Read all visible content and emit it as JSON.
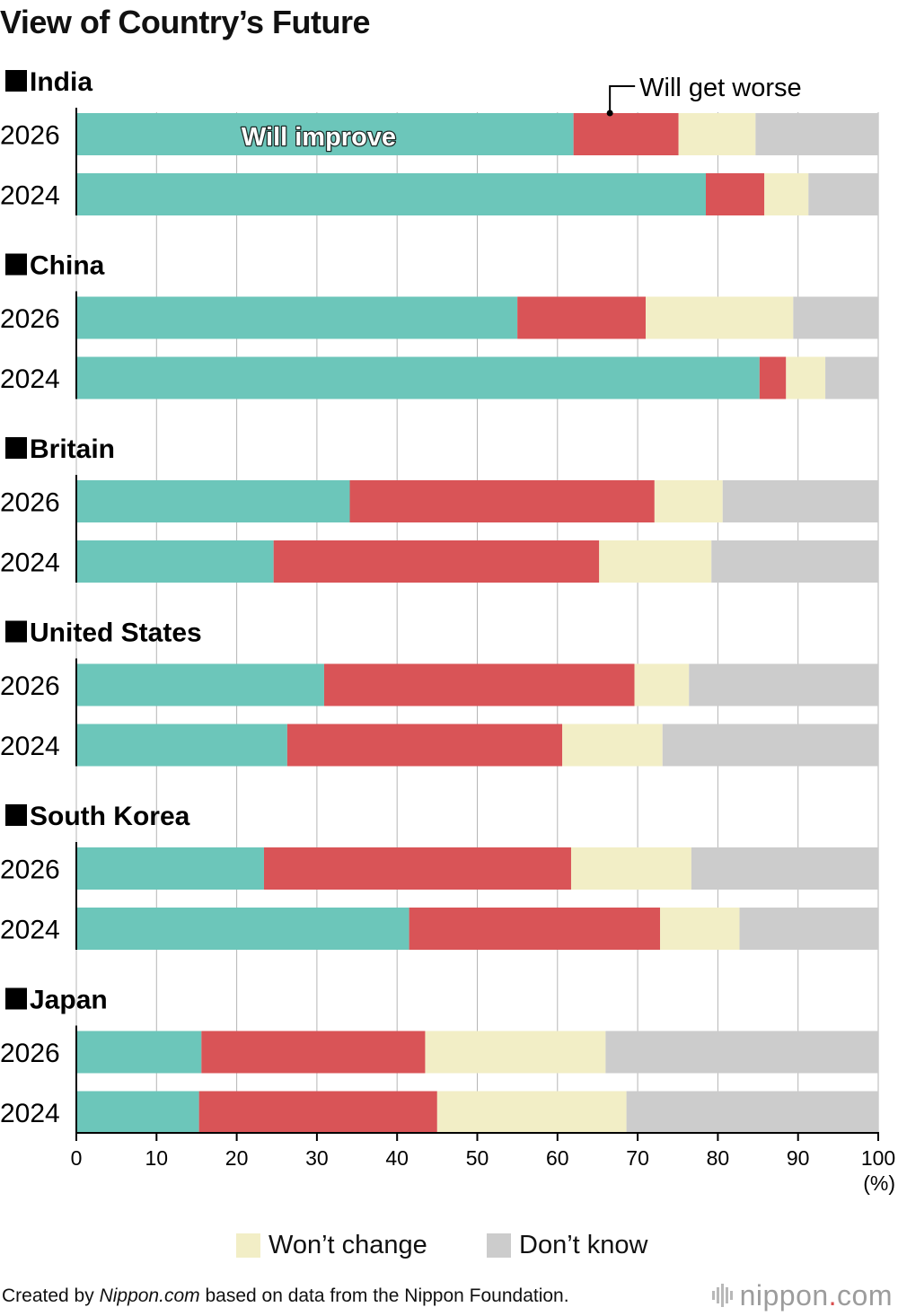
{
  "title": "View of Country’s Future",
  "legend": {
    "wont_change": "Won’t change",
    "dont_know": "Don’t know"
  },
  "annotations": {
    "will_improve": "Will improve",
    "will_get_worse": "Will get worse"
  },
  "source": {
    "prefix": "Created by ",
    "site": "Nippon.com",
    "suffix": " based on data from the Nippon Foundation."
  },
  "logo": {
    "main": "nippon",
    "dot": ".",
    "tld": "com"
  },
  "colors": {
    "will_improve": "#6cc6ba",
    "will_get_worse": "#d95457",
    "wont_change": "#f2eec6",
    "dont_know": "#cccccc",
    "grid": "#b5b5b5",
    "axis": "#000000"
  },
  "chart_data": {
    "type": "bar",
    "orientation": "horizontal",
    "stacked": true,
    "title": "View of Country’s Future",
    "xlabel": "(%)",
    "xlim": [
      0,
      100
    ],
    "xticks": [
      0,
      10,
      20,
      30,
      40,
      50,
      60,
      70,
      80,
      90,
      100
    ],
    "series_names": [
      "Will improve",
      "Will get worse",
      "Won’t change",
      "Don’t know"
    ],
    "groups": [
      {
        "country": "India",
        "rows": [
          {
            "year": "2026",
            "values": [
              62.0,
              13.1,
              9.6,
              15.3
            ]
          },
          {
            "year": "2024",
            "values": [
              78.5,
              7.3,
              5.5,
              8.7
            ]
          }
        ]
      },
      {
        "country": "China",
        "rows": [
          {
            "year": "2026",
            "values": [
              55.0,
              16.0,
              18.4,
              10.6
            ]
          },
          {
            "year": "2024",
            "values": [
              85.2,
              3.3,
              4.9,
              6.6
            ]
          }
        ]
      },
      {
        "country": "Britain",
        "rows": [
          {
            "year": "2026",
            "values": [
              34.1,
              38.0,
              8.5,
              19.4
            ]
          },
          {
            "year": "2024",
            "values": [
              24.6,
              40.6,
              14.0,
              20.8
            ]
          }
        ]
      },
      {
        "country": "United States",
        "rows": [
          {
            "year": "2026",
            "values": [
              30.9,
              38.7,
              6.8,
              23.6
            ]
          },
          {
            "year": "2024",
            "values": [
              26.3,
              34.3,
              12.5,
              26.9
            ]
          }
        ]
      },
      {
        "country": "South Korea",
        "rows": [
          {
            "year": "2026",
            "values": [
              23.4,
              38.3,
              15.0,
              23.3
            ]
          },
          {
            "year": "2024",
            "values": [
              41.5,
              31.3,
              9.9,
              17.3
            ]
          }
        ]
      },
      {
        "country": "Japan",
        "rows": [
          {
            "year": "2026",
            "values": [
              15.6,
              27.9,
              22.5,
              34.0
            ]
          },
          {
            "year": "2024",
            "values": [
              15.3,
              29.7,
              23.6,
              31.4
            ]
          }
        ]
      }
    ]
  }
}
